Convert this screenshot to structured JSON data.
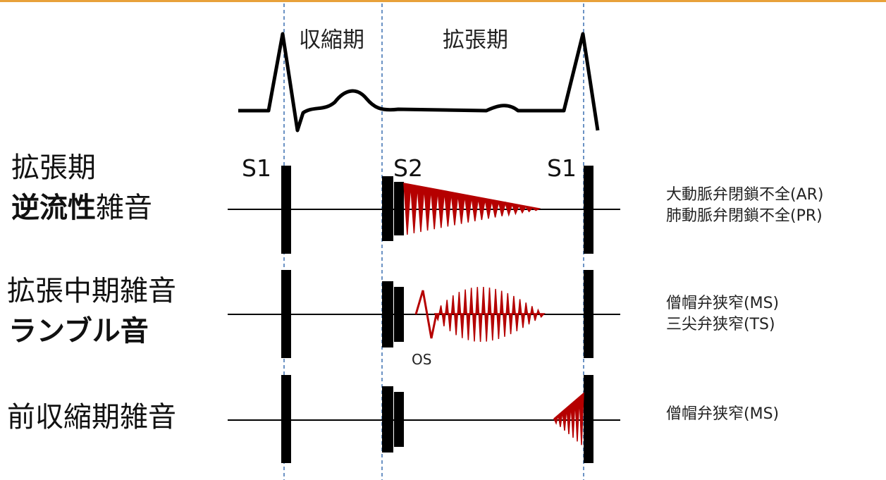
{
  "phases": {
    "systole": "収縮期",
    "diastole": "拡張期"
  },
  "sound_labels": {
    "s1_left": "S1",
    "s2": "S2",
    "s1_right": "S1"
  },
  "rows": [
    {
      "label_line1": "拡張期",
      "label_line2_bold": "逆流性",
      "label_line2_rest": "雑音",
      "diseases": [
        "大動脈弁閉鎖不全(AR)",
        "肺動脈弁閉鎖不全(PR)"
      ]
    },
    {
      "label_line1": "拡張中期雑音",
      "label_line2_bold": "ランブル音",
      "diseases": [
        "僧帽弁狭窄(MS)",
        "三尖弁狭窄(TS)"
      ],
      "os_label": "OS"
    },
    {
      "label_line1": "前収縮期雑音",
      "diseases": [
        "僧帽弁狭窄(MS)"
      ]
    }
  ],
  "colors": {
    "murmur": "#b50000",
    "guide": "#3a6fb0",
    "accent_border": "#e8a13a",
    "ink": "#000000"
  }
}
